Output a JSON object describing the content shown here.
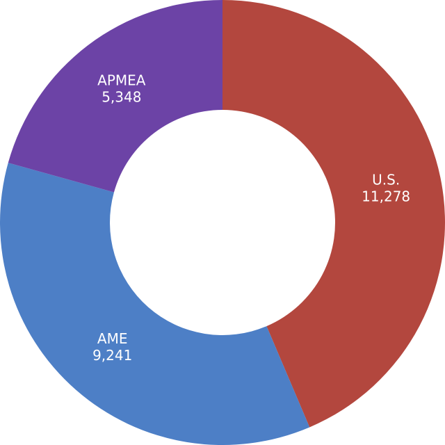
{
  "chart_data": {
    "type": "donut",
    "categories": [
      "U.S.",
      "AME",
      "APMEA"
    ],
    "values": [
      11278,
      9241,
      5348
    ],
    "value_labels": [
      "11,278",
      "9,241",
      "5,348"
    ],
    "colors": [
      "#b3473e",
      "#4d7fc6",
      "#6c43a6"
    ]
  }
}
